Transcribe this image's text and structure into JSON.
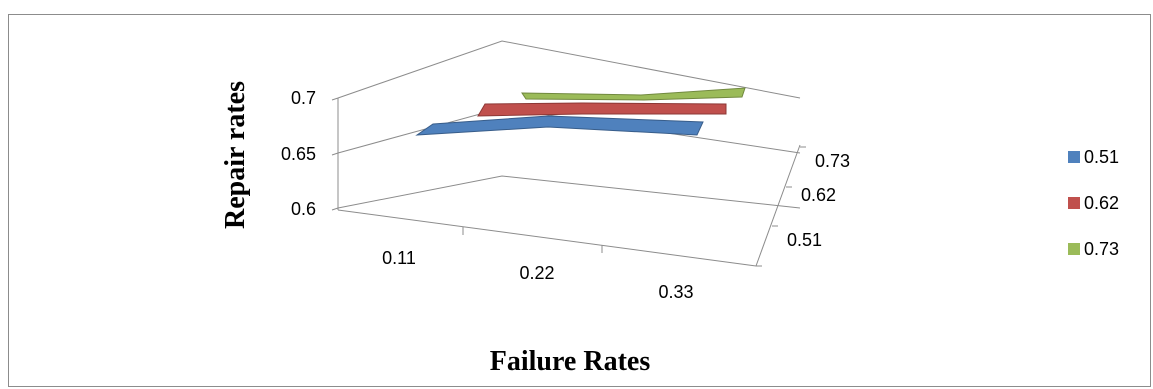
{
  "chart_data": {
    "type": "surface",
    "xlabel": "Failure Rates",
    "ylabel": "Repair rates",
    "x_categories": [
      "0.11",
      "0.22",
      "0.33"
    ],
    "depth_categories": [
      "0.51",
      "0.62",
      "0.73"
    ],
    "y_ticks": [
      "0.6",
      "0.65",
      "0.7"
    ],
    "ylim": [
      0.6,
      0.7
    ],
    "series": [
      {
        "name": "0.51",
        "color": "#4f81bd",
        "values": [
          0.67,
          0.675,
          0.67
        ]
      },
      {
        "name": "0.62",
        "color": "#c0504d",
        "values": [
          0.68,
          0.68,
          0.68
        ]
      },
      {
        "name": "0.73",
        "color": "#9bbb59",
        "values": [
          0.69,
          0.69,
          0.69
        ]
      }
    ],
    "legend_position": "right",
    "grid": true
  }
}
